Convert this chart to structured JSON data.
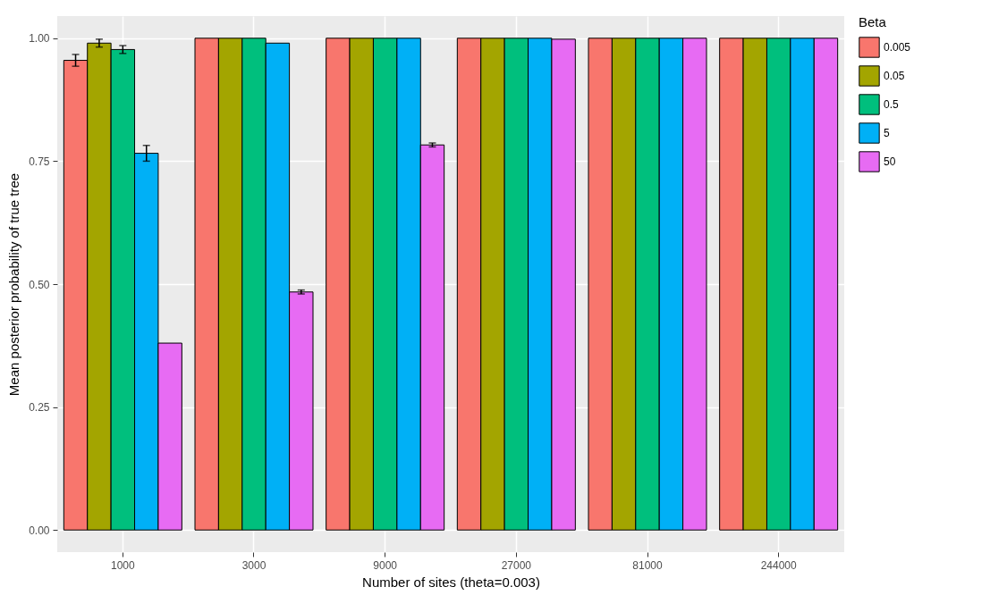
{
  "chart_data": {
    "type": "bar",
    "xlabel": "Number of sites (theta=0.003)",
    "ylabel": "Mean posterior probability of true tree",
    "legend_title": "Beta",
    "categories": [
      "1000",
      "3000",
      "9000",
      "27000",
      "81000",
      "244000"
    ],
    "series": [
      {
        "name": "0.005",
        "color": "#f8766d",
        "values": [
          0.955,
          1.0,
          1.0,
          1.0,
          1.0,
          1.0
        ],
        "errors": [
          0.012,
          null,
          null,
          null,
          null,
          null
        ]
      },
      {
        "name": "0.05",
        "color": "#a3a500",
        "values": [
          0.99,
          1.0,
          1.0,
          1.0,
          1.0,
          1.0
        ],
        "errors": [
          0.008,
          null,
          null,
          null,
          null,
          null
        ]
      },
      {
        "name": "0.5",
        "color": "#00bf7d",
        "values": [
          0.977,
          1.0,
          1.0,
          1.0,
          1.0,
          1.0
        ],
        "errors": [
          0.008,
          null,
          null,
          null,
          null,
          null
        ]
      },
      {
        "name": "5",
        "color": "#00b0f6",
        "values": [
          0.766,
          0.99,
          1.0,
          1.0,
          1.0,
          1.0
        ],
        "errors": [
          0.016,
          null,
          null,
          null,
          null,
          null
        ]
      },
      {
        "name": "50",
        "color": "#e76bf3",
        "values": [
          0.38,
          0.484,
          0.783,
          0.998,
          1.0,
          1.0
        ],
        "errors": [
          null,
          0.004,
          0.004,
          null,
          null,
          null
        ]
      }
    ],
    "ylim": [
      -0.045,
      1.045
    ],
    "yticks": [
      {
        "value": 0,
        "label": "0.00"
      },
      {
        "value": 0.25,
        "label": "0.25"
      },
      {
        "value": 0.5,
        "label": "0.50"
      },
      {
        "value": 0.75,
        "label": "0.75"
      },
      {
        "value": 1,
        "label": "1.00"
      }
    ],
    "grid": true,
    "legend": "right"
  }
}
